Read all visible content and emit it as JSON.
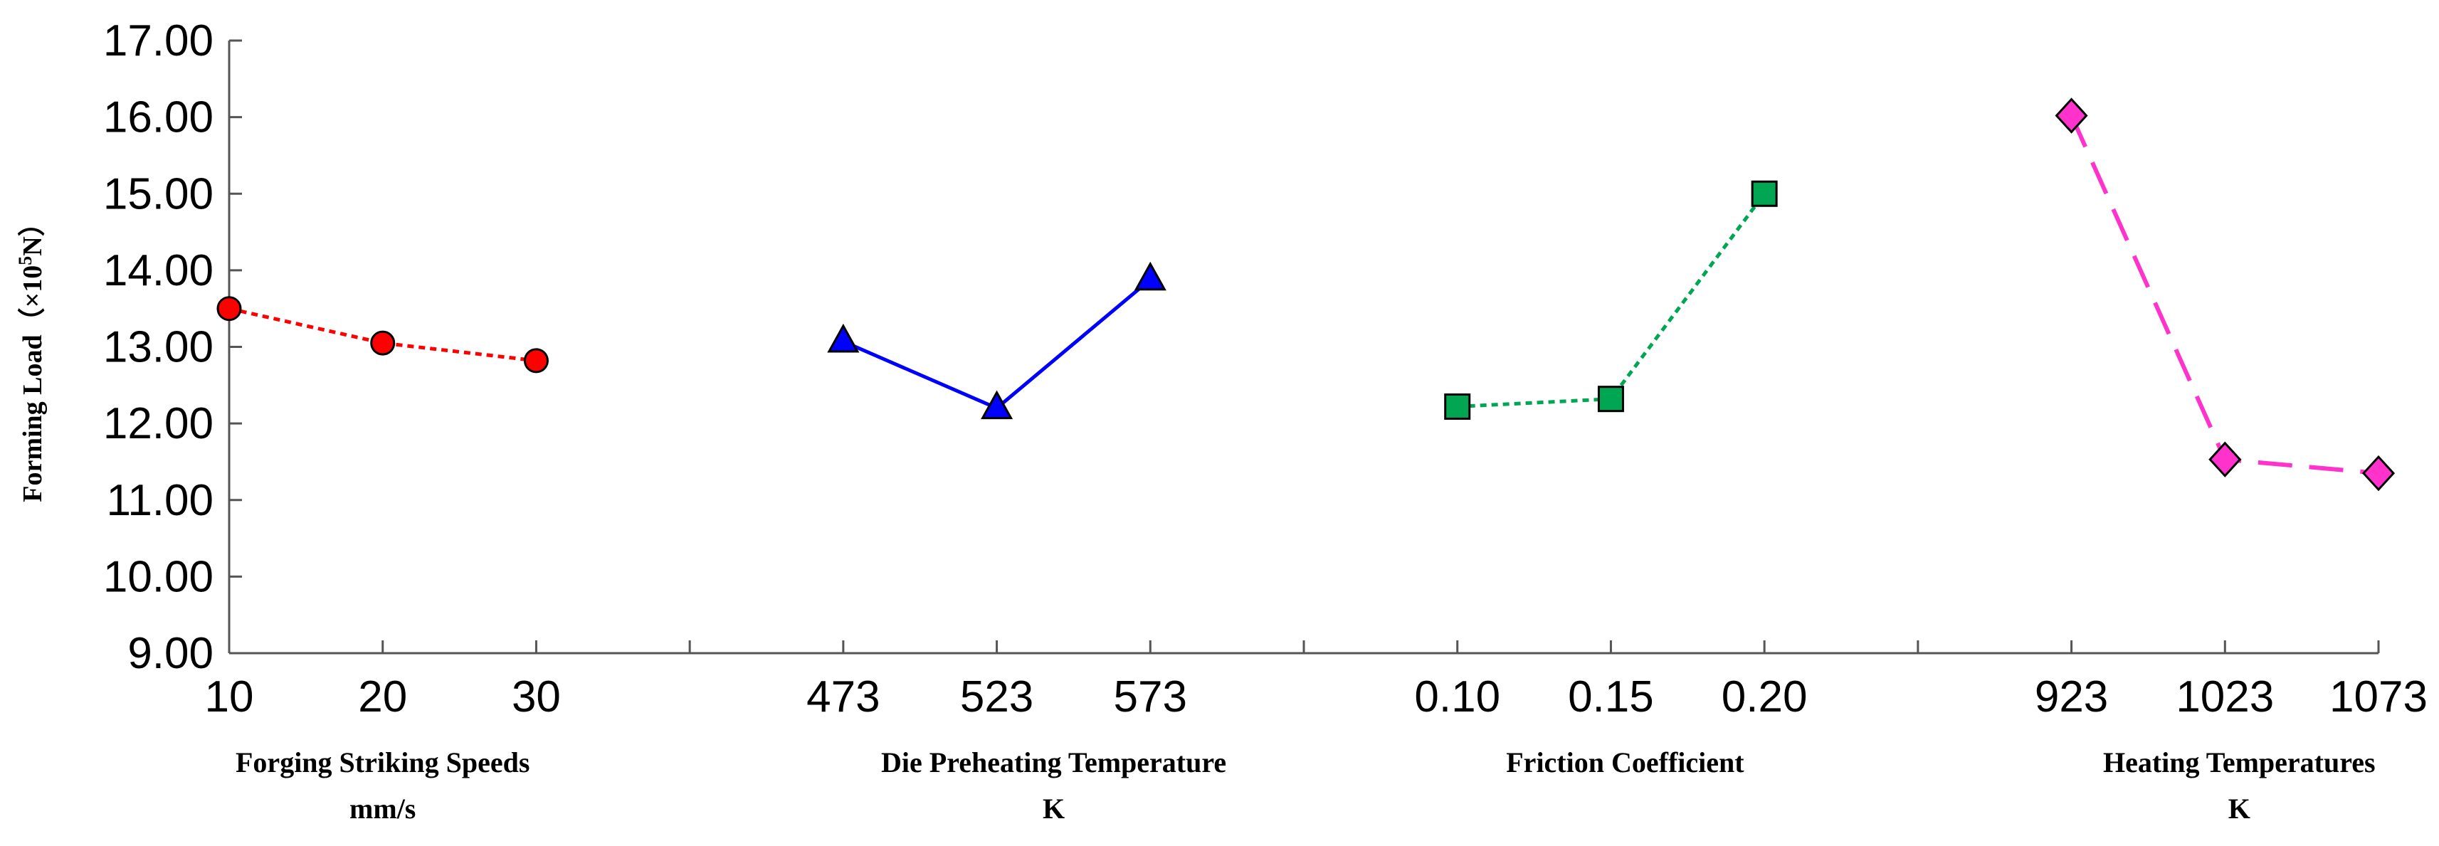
{
  "chart_data": {
    "type": "line",
    "ylabel": "Forming Load（×10",
    "ylabel_exp": "5",
    "ylabel_unit": "N）",
    "ylim": [
      9.0,
      17.0
    ],
    "yticks": [
      "9.00",
      "10.00",
      "11.00",
      "12.00",
      "13.00",
      "14.00",
      "15.00",
      "16.00",
      "17.00"
    ],
    "grid": false,
    "series": [
      {
        "name": "Forging Striking Speeds",
        "label": "Forging Striking Speeds",
        "unit": "mm/s",
        "categories": [
          "10",
          "20",
          "30"
        ],
        "values": [
          13.5,
          13.05,
          12.82
        ],
        "color": "#ff0000",
        "marker": "circle",
        "line": "dotted"
      },
      {
        "name": "Die Preheating Temperature",
        "label": "Die Preheating Temperature",
        "unit": "K",
        "categories": [
          "473",
          "523",
          "573"
        ],
        "values": [
          13.07,
          12.2,
          13.88
        ],
        "color": "#0000ff",
        "marker": "triangle",
        "line": "solid"
      },
      {
        "name": "Friction Coefficient",
        "label": "Friction Coefficient",
        "unit": "",
        "categories": [
          "0.10",
          "0.15",
          "0.20"
        ],
        "values": [
          12.22,
          12.32,
          15.0
        ],
        "color": "#00a651",
        "marker": "square",
        "line": "dotted"
      },
      {
        "name": "Heating Temperatures",
        "label": "Heating Temperatures",
        "unit": "K",
        "categories": [
          "923",
          "1023",
          "1073"
        ],
        "values": [
          16.02,
          11.53,
          11.35
        ],
        "color": "#ff33cc",
        "marker": "diamond",
        "line": "dashed"
      }
    ]
  }
}
